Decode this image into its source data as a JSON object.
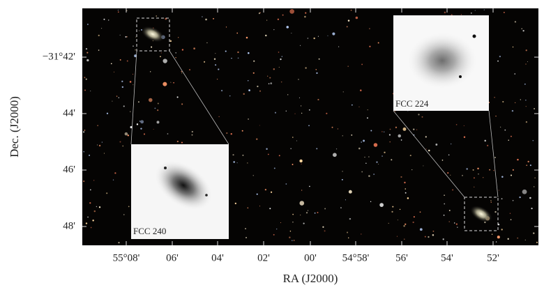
{
  "figure": {
    "x_axis": {
      "label": "RA (J2000)",
      "ticks": [
        "55°08'",
        "06'",
        "04'",
        "02'",
        "00'",
        "54°58'",
        "56'",
        "54'",
        "52'"
      ]
    },
    "y_axis": {
      "label": "Dec. (J2000)",
      "ticks": [
        "−31°42'",
        "44'",
        "46'",
        "48'"
      ]
    },
    "insets": [
      {
        "label": "FCC 224"
      },
      {
        "label": "FCC 240"
      }
    ]
  }
}
